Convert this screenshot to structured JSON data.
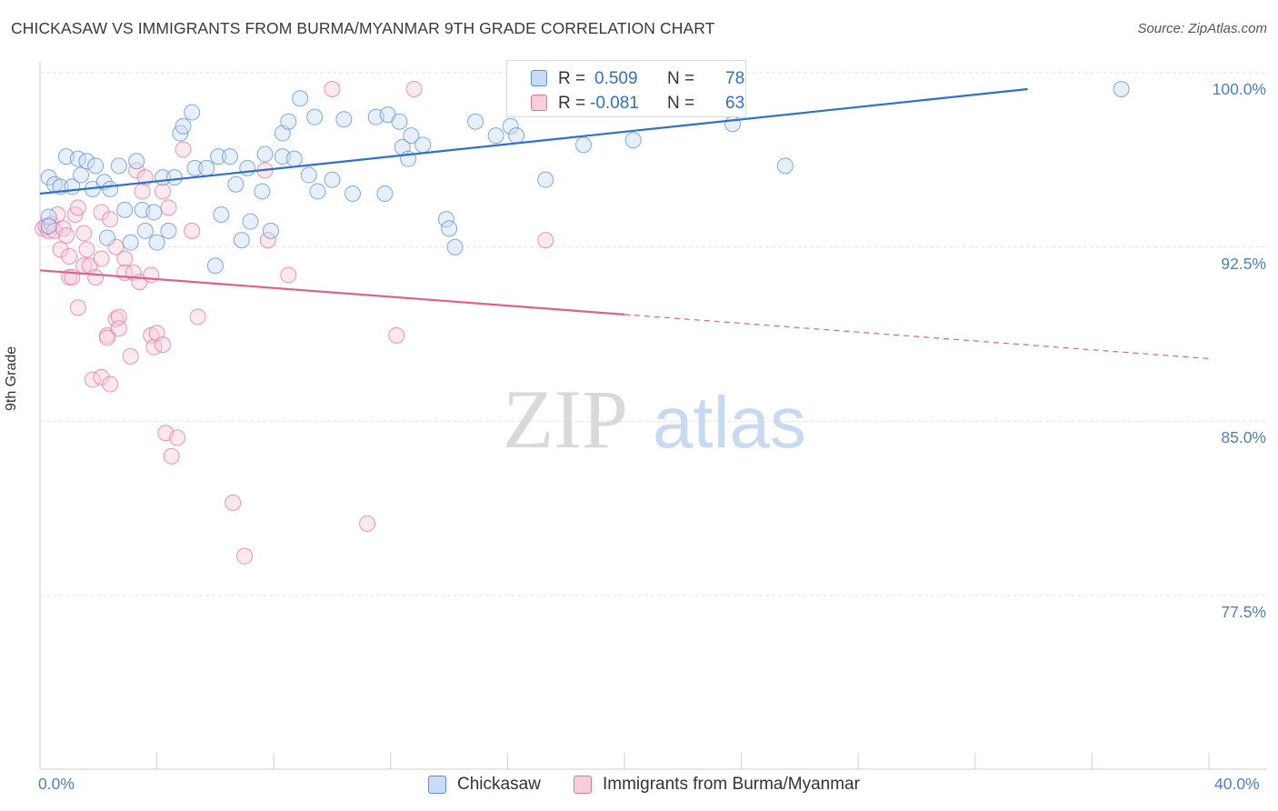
{
  "title": "CHICKASAW VS IMMIGRANTS FROM BURMA/MYANMAR 9TH GRADE CORRELATION CHART",
  "source": "Source: ZipAtlas.com",
  "watermark": {
    "zip": "ZIP",
    "atlas": "atlas"
  },
  "legend": {
    "rows": [
      {
        "r_label": "R =",
        "r_value": "0.509",
        "n_label": "N =",
        "n_value": "78",
        "color": "#5b8fd6",
        "fill": "#c9dcf5"
      },
      {
        "r_label": "R =",
        "r_value": "-0.081",
        "n_label": "N =",
        "n_value": "63",
        "color": "#e8739a",
        "fill": "#f9cddc"
      }
    ]
  },
  "bottom_legend": [
    "Chickasaw",
    "Immigrants from Burma/Myanmar"
  ],
  "colors": {
    "blue": "#5b8fd6",
    "blue_line": "#2f6fcf",
    "pink": "#e8739a",
    "pink_line": "#e0608a",
    "axis_text": "#4a7fc9",
    "grid": "#e3e3e3"
  },
  "chart_data": {
    "type": "scatter",
    "title": "CHICKASAW VS IMMIGRANTS FROM BURMA/MYANMAR 9TH GRADE CORRELATION CHART",
    "xlabel": "",
    "ylabel": "9th Grade",
    "xlim": [
      0,
      40
    ],
    "ylim": [
      70,
      101
    ],
    "x_tick_labels": [
      "0.0%",
      "40.0%"
    ],
    "y_ticks": [
      77.5,
      85.0,
      92.5,
      100.0
    ],
    "y_tick_labels": [
      "77.5%",
      "85.0%",
      "92.5%",
      "100.0%"
    ],
    "grid": true,
    "legend_position": "top-center",
    "series": [
      {
        "name": "Chickasaw",
        "color": "#5b8fd6",
        "trend": {
          "x0": 0,
          "y0": 95.5,
          "x1": 33.8,
          "y1": 100.0,
          "dashed_to": null
        },
        "points": [
          [
            0.3,
            94.5
          ],
          [
            0.3,
            94.1
          ],
          [
            0.3,
            96.2
          ],
          [
            0.5,
            95.9
          ],
          [
            0.7,
            95.8
          ],
          [
            0.9,
            97.1
          ],
          [
            1.1,
            95.8
          ],
          [
            1.3,
            97.0
          ],
          [
            1.4,
            96.3
          ],
          [
            1.6,
            96.9
          ],
          [
            1.8,
            95.7
          ],
          [
            1.9,
            96.7
          ],
          [
            2.2,
            96.0
          ],
          [
            2.3,
            93.6
          ],
          [
            2.4,
            95.7
          ],
          [
            2.7,
            96.7
          ],
          [
            2.9,
            94.8
          ],
          [
            3.1,
            93.4
          ],
          [
            3.3,
            96.9
          ],
          [
            3.5,
            94.8
          ],
          [
            3.6,
            93.9
          ],
          [
            3.9,
            94.7
          ],
          [
            4.0,
            93.4
          ],
          [
            4.2,
            96.2
          ],
          [
            4.4,
            93.9
          ],
          [
            4.6,
            96.2
          ],
          [
            4.8,
            98.1
          ],
          [
            4.9,
            98.4
          ],
          [
            5.2,
            99.0
          ],
          [
            5.3,
            96.6
          ],
          [
            5.7,
            96.6
          ],
          [
            6.0,
            92.4
          ],
          [
            6.1,
            97.1
          ],
          [
            6.2,
            94.6
          ],
          [
            6.5,
            97.1
          ],
          [
            6.7,
            95.9
          ],
          [
            6.9,
            93.5
          ],
          [
            7.1,
            96.6
          ],
          [
            7.2,
            94.3
          ],
          [
            7.6,
            95.6
          ],
          [
            7.7,
            97.2
          ],
          [
            7.9,
            93.9
          ],
          [
            8.3,
            97.1
          ],
          [
            8.3,
            98.1
          ],
          [
            8.5,
            98.6
          ],
          [
            8.7,
            97.0
          ],
          [
            8.9,
            99.6
          ],
          [
            9.2,
            96.3
          ],
          [
            9.4,
            98.8
          ],
          [
            9.5,
            95.6
          ],
          [
            10.0,
            96.1
          ],
          [
            10.4,
            98.7
          ],
          [
            10.7,
            95.5
          ],
          [
            11.5,
            98.8
          ],
          [
            11.8,
            95.5
          ],
          [
            11.9,
            98.9
          ],
          [
            12.3,
            98.6
          ],
          [
            12.4,
            97.5
          ],
          [
            12.6,
            97.0
          ],
          [
            12.7,
            98.0
          ],
          [
            13.1,
            97.6
          ],
          [
            13.9,
            94.4
          ],
          [
            14.0,
            94.0
          ],
          [
            14.2,
            93.2
          ],
          [
            14.9,
            98.6
          ],
          [
            15.6,
            98.0
          ],
          [
            16.1,
            98.4
          ],
          [
            16.3,
            98.0
          ],
          [
            16.5,
            100.0
          ],
          [
            17.3,
            96.1
          ],
          [
            17.8,
            100.0
          ],
          [
            18.6,
            97.6
          ],
          [
            19.5,
            100.0
          ],
          [
            20.3,
            97.8
          ],
          [
            21.0,
            100.0
          ],
          [
            23.7,
            98.5
          ],
          [
            25.5,
            96.7
          ],
          [
            37.0,
            100.0
          ]
        ]
      },
      {
        "name": "Immigrants from Burma/Myanmar",
        "color": "#e8739a",
        "trend": {
          "x0": 0,
          "y0": 92.2,
          "x1": 20.0,
          "y1": 90.3,
          "dashed_to": {
            "x": 40,
            "y": 88.4
          }
        },
        "points": [
          [
            0.1,
            94.0
          ],
          [
            0.2,
            94.1
          ],
          [
            0.3,
            93.9
          ],
          [
            0.4,
            94.2
          ],
          [
            0.5,
            93.9
          ],
          [
            0.6,
            94.6
          ],
          [
            0.7,
            93.1
          ],
          [
            0.8,
            94.0
          ],
          [
            0.9,
            93.7
          ],
          [
            1.0,
            92.8
          ],
          [
            1.0,
            91.9
          ],
          [
            1.1,
            91.9
          ],
          [
            1.2,
            94.6
          ],
          [
            1.3,
            94.9
          ],
          [
            1.3,
            90.6
          ],
          [
            1.5,
            92.4
          ],
          [
            1.5,
            93.8
          ],
          [
            1.6,
            93.1
          ],
          [
            1.7,
            92.4
          ],
          [
            1.8,
            87.5
          ],
          [
            1.9,
            91.9
          ],
          [
            2.1,
            92.7
          ],
          [
            2.1,
            87.6
          ],
          [
            2.1,
            94.7
          ],
          [
            2.3,
            89.4
          ],
          [
            2.3,
            89.3
          ],
          [
            2.4,
            87.3
          ],
          [
            2.4,
            94.4
          ],
          [
            2.6,
            93.2
          ],
          [
            2.6,
            90.1
          ],
          [
            2.7,
            90.2
          ],
          [
            2.7,
            89.7
          ],
          [
            2.9,
            92.7
          ],
          [
            2.9,
            92.1
          ],
          [
            3.1,
            88.5
          ],
          [
            3.2,
            92.1
          ],
          [
            3.3,
            96.5
          ],
          [
            3.4,
            91.7
          ],
          [
            3.5,
            95.6
          ],
          [
            3.6,
            96.2
          ],
          [
            3.8,
            92.0
          ],
          [
            3.8,
            89.4
          ],
          [
            3.9,
            88.9
          ],
          [
            4.0,
            89.5
          ],
          [
            4.2,
            89.0
          ],
          [
            4.2,
            95.6
          ],
          [
            4.3,
            85.2
          ],
          [
            4.4,
            94.9
          ],
          [
            4.5,
            84.2
          ],
          [
            4.7,
            85.0
          ],
          [
            4.9,
            97.4
          ],
          [
            5.2,
            93.9
          ],
          [
            5.4,
            90.2
          ],
          [
            6.6,
            82.2
          ],
          [
            7.0,
            79.9
          ],
          [
            7.7,
            96.5
          ],
          [
            7.8,
            93.5
          ],
          [
            8.5,
            92.0
          ],
          [
            10.0,
            100.0
          ],
          [
            11.2,
            81.3
          ],
          [
            12.2,
            89.4
          ],
          [
            12.8,
            100.0
          ],
          [
            17.3,
            93.5
          ]
        ]
      }
    ]
  }
}
